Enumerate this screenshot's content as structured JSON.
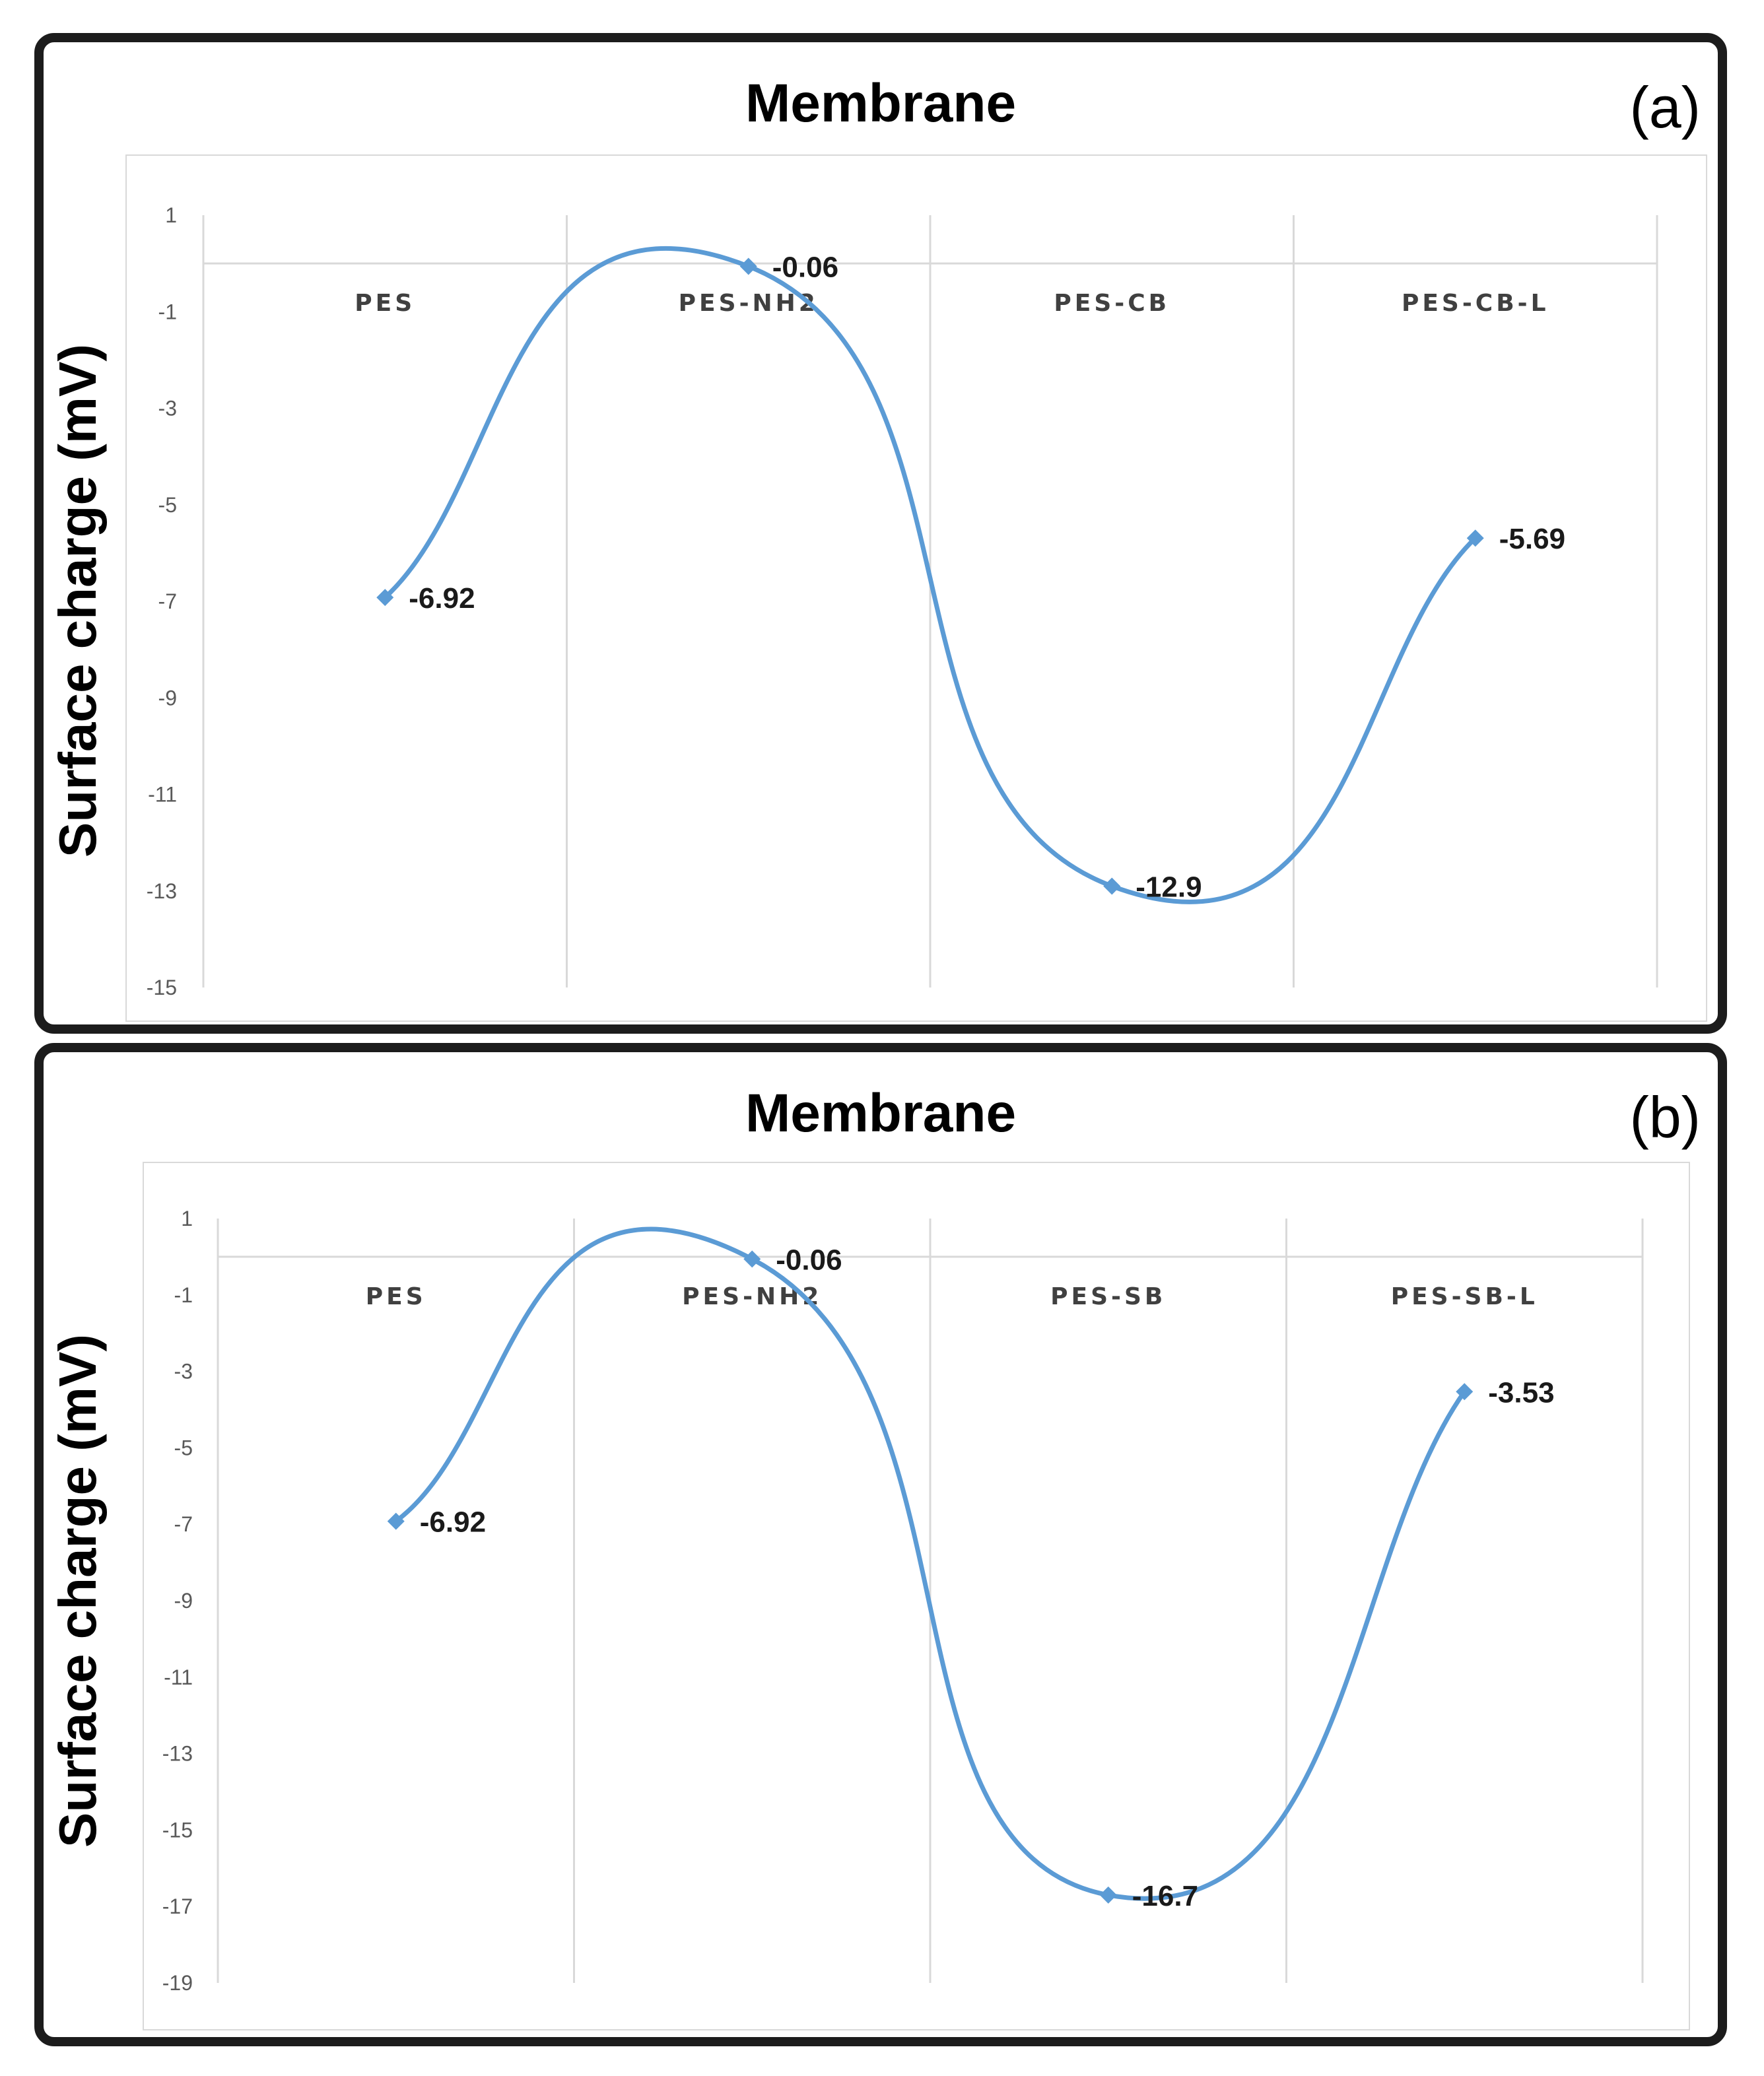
{
  "chart_data": [
    {
      "type": "line",
      "panel_label": "(a)",
      "title": "Membrane",
      "xlabel": "",
      "ylabel": "Surface charge (mV)",
      "categories": [
        "PES",
        "PES-NH2",
        "PES-CB",
        "PES-CB-L"
      ],
      "series": [
        {
          "name": "Surface charge",
          "values": [
            -6.92,
            -0.06,
            -12.9,
            -5.69
          ]
        }
      ],
      "data_labels": [
        "-6.92",
        "-0.06",
        "-12.9",
        "-5.69"
      ],
      "yticks": [
        "1",
        "-1",
        "-3",
        "-5",
        "-7",
        "-9",
        "-11",
        "-13",
        "-15"
      ],
      "ylim": [
        -15,
        1
      ],
      "category_axis_at": 0,
      "grid": "vertical",
      "line_style": "smooth",
      "marker": "diamond",
      "color": "#5b9bd5"
    },
    {
      "type": "line",
      "panel_label": "(b)",
      "title": "Membrane",
      "xlabel": "",
      "ylabel": "Surface charge (mV)",
      "categories": [
        "PES",
        "PES-NH2",
        "PES-SB",
        "PES-SB-L"
      ],
      "series": [
        {
          "name": "Surface charge",
          "values": [
            -6.92,
            -0.06,
            -16.7,
            -3.53
          ]
        }
      ],
      "data_labels": [
        "-6.92",
        "-0.06",
        "-16.7",
        "-3.53"
      ],
      "yticks": [
        "1",
        "-1",
        "-3",
        "-5",
        "-7",
        "-9",
        "-11",
        "-13",
        "-15",
        "-17",
        "-19"
      ],
      "ylim": [
        -19,
        1
      ],
      "category_axis_at": 0,
      "grid": "vertical",
      "line_style": "smooth",
      "marker": "diamond",
      "color": "#5b9bd5"
    }
  ]
}
